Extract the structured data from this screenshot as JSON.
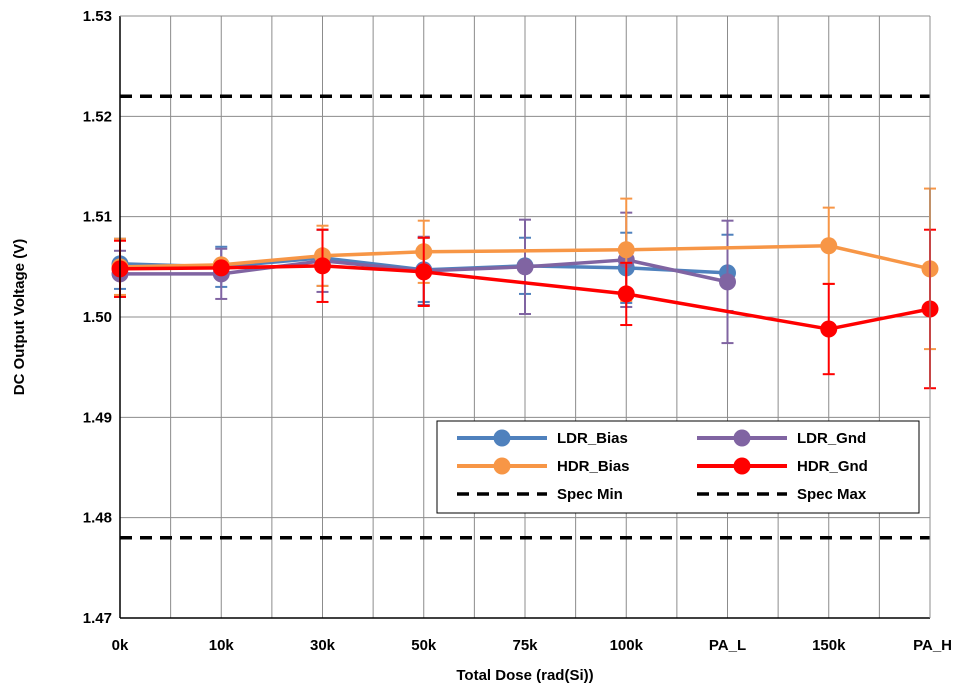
{
  "chart_data": {
    "type": "line",
    "title": "",
    "xlabel": "Total Dose (rad(Si))",
    "ylabel": "DC Output Voltage (V)",
    "categories": [
      "0k",
      "10k",
      "30k",
      "50k",
      "75k",
      "100k",
      "PA_L",
      "150k",
      "PA_H"
    ],
    "ylim": [
      1.47,
      1.53
    ],
    "yticks": [
      1.47,
      1.48,
      1.49,
      1.5,
      1.51,
      1.52,
      1.53
    ],
    "ytick_labels": [
      "1.47",
      "1.48",
      "1.49",
      "1.50",
      "1.51",
      "1.52",
      "1.53"
    ],
    "grid": true,
    "legend_position": "bottom-right",
    "series": [
      {
        "name": "LDR_Bias",
        "color": "#4f81bd",
        "values": [
          1.5053,
          1.505,
          1.5059,
          1.5047,
          1.5051,
          1.5049,
          1.5044,
          null,
          null
        ],
        "errors": [
          0.0025,
          0.002,
          0.0028,
          0.0032,
          0.0028,
          0.0035,
          0.0038,
          null,
          null
        ]
      },
      {
        "name": "LDR_Gnd",
        "color": "#8064a2",
        "values": [
          1.5043,
          1.5043,
          1.5056,
          1.5046,
          1.505,
          1.5057,
          1.5035,
          null,
          null
        ],
        "errors": [
          0.0023,
          0.0025,
          0.0031,
          0.0034,
          0.0047,
          0.0047,
          0.0061,
          null,
          null
        ]
      },
      {
        "name": "HDR_Bias",
        "color": "#f79646",
        "values": [
          1.505,
          1.5052,
          1.5061,
          1.5065,
          null,
          1.5067,
          null,
          1.5071,
          1.5048
        ],
        "errors": [
          0.0028,
          null,
          0.003,
          0.0031,
          null,
          0.0051,
          null,
          0.0038,
          0.008
        ]
      },
      {
        "name": "HDR_Gnd",
        "color": "#ff0000",
        "values": [
          1.5048,
          1.5049,
          1.5051,
          1.5045,
          null,
          1.5023,
          null,
          1.4988,
          1.5008
        ],
        "errors": [
          0.0028,
          null,
          0.0036,
          0.0034,
          null,
          0.0031,
          null,
          0.0045,
          0.0079
        ]
      }
    ],
    "reference_lines": [
      {
        "name": "Spec Min",
        "value": 1.478,
        "style": "dashed",
        "color": "#000000"
      },
      {
        "name": "Spec Max",
        "value": 1.522,
        "style": "dashed",
        "color": "#000000"
      }
    ],
    "legend": [
      "LDR_Bias",
      "LDR_Gnd",
      "HDR_Bias",
      "HDR_Gnd",
      "Spec Min",
      "Spec Max"
    ]
  }
}
